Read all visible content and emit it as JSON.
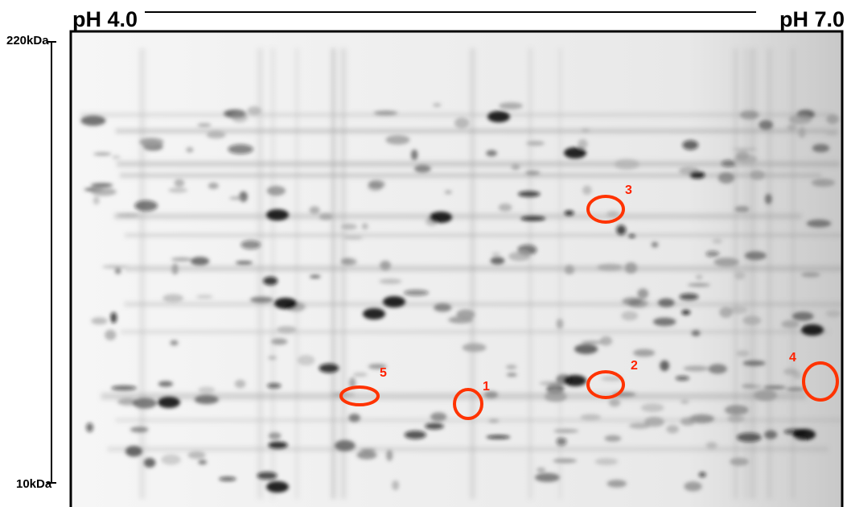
{
  "header": {
    "ph_start": "pH 4.0",
    "ph_end": "pH 7.0"
  },
  "mass_axis": {
    "top": "220kDa",
    "bottom": "10kDa"
  },
  "spots": [
    {
      "label": "1"
    },
    {
      "label": "2"
    },
    {
      "label": "3"
    },
    {
      "label": "4"
    },
    {
      "label": "5"
    }
  ]
}
